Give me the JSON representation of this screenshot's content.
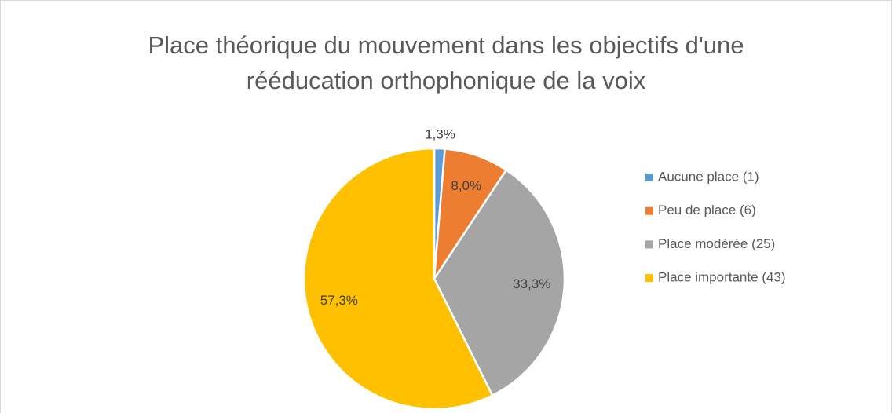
{
  "chart_data": {
    "type": "pie",
    "title": [
      "Place théorique du mouvement dans les objectifs d'une",
      "rééducation orthophonique de la voix"
    ],
    "categories": [
      "Aucune place (1)",
      "Peu de place (6)",
      "Place modérée (25)",
      "Place importante (43)"
    ],
    "values": [
      1.3,
      8.0,
      33.3,
      57.3
    ],
    "value_labels": [
      "1,3%",
      "8,0%",
      "33,3%",
      "57,3%"
    ],
    "colors": [
      "#5b9bd5",
      "#ed7d31",
      "#a5a5a5",
      "#ffc000"
    ],
    "legend": "right"
  }
}
